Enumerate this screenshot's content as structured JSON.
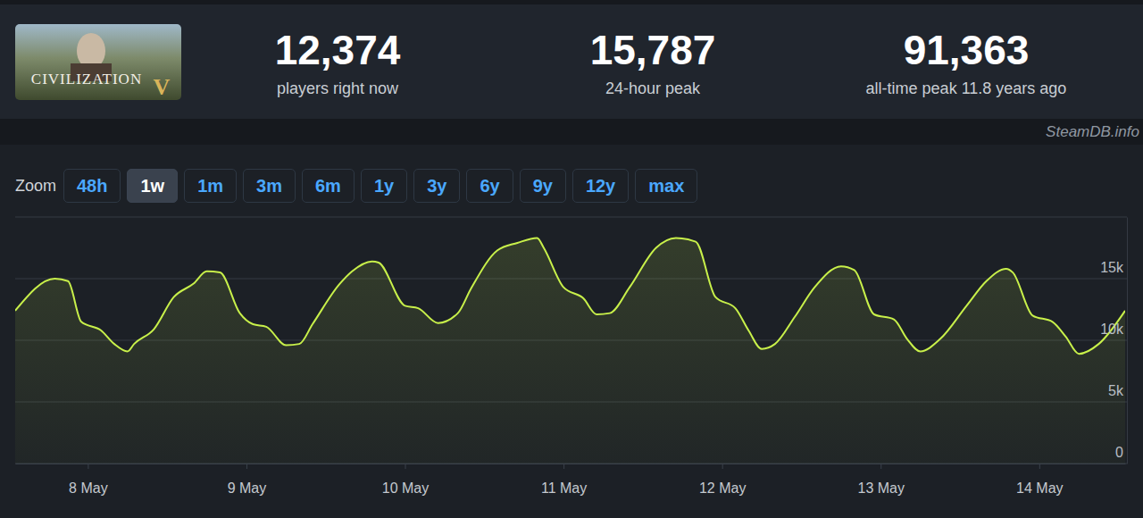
{
  "header": {
    "logo": {
      "title": "CIVILIZATION",
      "numeral": "V"
    },
    "stats": [
      {
        "value": "12,374",
        "label": "players right now"
      },
      {
        "value": "15,787",
        "label": "24-hour peak"
      },
      {
        "value": "91,363",
        "label": "all-time peak 11.8 years ago"
      }
    ],
    "source": "SteamDB.info"
  },
  "zoom": {
    "label": "Zoom",
    "options": [
      "48h",
      "1w",
      "1m",
      "3m",
      "6m",
      "1y",
      "3y",
      "6y",
      "9y",
      "12y",
      "max"
    ],
    "selected": "1w"
  },
  "chart_data": {
    "type": "area",
    "color": "#c8f04a",
    "grid": true,
    "x": [
      13,
      19,
      21,
      23,
      26,
      28,
      30,
      31,
      34,
      37,
      40,
      42,
      44,
      47,
      49,
      51,
      54,
      56,
      58,
      62,
      64,
      67,
      68,
      72,
      74,
      77,
      80,
      82,
      86,
      89,
      92,
      93,
      96,
      99,
      101,
      103,
      106,
      110,
      113,
      116,
      119,
      122,
      124,
      126,
      128,
      131,
      134,
      138,
      140,
      143,
      146,
      148,
      150,
      153,
      157,
      160,
      163,
      164,
      167,
      170,
      172,
      174,
      177,
      181
    ],
    "values": [
      12400,
      15000,
      14800,
      11500,
      10800,
      9700,
      9100,
      9700,
      10900,
      13500,
      14600,
      15600,
      15500,
      12200,
      11300,
      11100,
      9600,
      9700,
      11300,
      14500,
      15600,
      16400,
      16300,
      12800,
      12600,
      11400,
      12200,
      14200,
      17300,
      17900,
      18300,
      17500,
      14300,
      13400,
      12100,
      12200,
      14300,
      17500,
      18300,
      18000,
      13500,
      12600,
      10800,
      9300,
      9700,
      11900,
      14300,
      16000,
      15700,
      12100,
      11700,
      10100,
      9100,
      10100,
      12800,
      14800,
      15800,
      15500,
      12000,
      11500,
      10300,
      8900,
      9700,
      12400
    ],
    "xlim": [
      13,
      181
    ],
    "xticks": [
      {
        "value": 24,
        "label": "8 May"
      },
      {
        "value": 48,
        "label": "9 May"
      },
      {
        "value": 72,
        "label": "10 May"
      },
      {
        "value": 96,
        "label": "11 May"
      },
      {
        "value": 120,
        "label": "12 May"
      },
      {
        "value": 144,
        "label": "13 May"
      },
      {
        "value": 168,
        "label": "14 May"
      }
    ],
    "ylim": [
      0,
      20000
    ],
    "yticks": [
      0,
      {
        "value": 5000,
        "label": "5k"
      },
      {
        "value": 10000,
        "label": "10k"
      },
      {
        "value": 15000,
        "label": "15k"
      }
    ]
  }
}
